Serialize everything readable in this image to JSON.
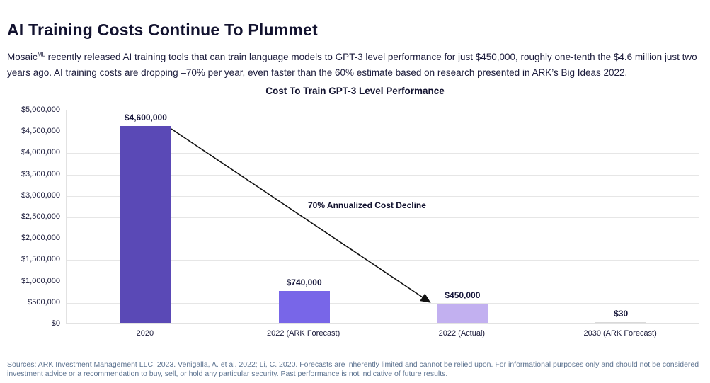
{
  "page": {
    "title": "AI Training Costs Continue To Plummet",
    "intro": {
      "prefix": "Mosaic",
      "superscript": "ML",
      "text": " recently released AI training tools that can train language models to GPT-3 level performance for just $450,000, roughly one-tenth the $4.6 million just two years ago. AI training costs are dropping –70% per year, even faster than the 60% estimate based on research presented in ARK’s Big Ideas 2022."
    },
    "footer": "Sources: ARK Investment Management LLC, 2023. Venigalla, A. et al. 2022; Li, C. 2020. Forecasts are inherently limited and cannot be relied upon. For informational purposes only and should not be considered investment advice or a recommendation to buy, sell, or hold any particular security. Past performance is not indicative of future results."
  },
  "chart_data": {
    "type": "bar",
    "title": "Cost To Train GPT-3 Level Performance",
    "categories": [
      "2020",
      "2022 (ARK Forecast)",
      "2022 (Actual)",
      "2030 (ARK Forecast)"
    ],
    "values": [
      4600000,
      740000,
      450000,
      30
    ],
    "value_labels": [
      "$4,600,000",
      "$740,000",
      "$450,000",
      "$30"
    ],
    "bar_colors": [
      "#5a49b6",
      "#7866e8",
      "#c2b0f0",
      "#d9d9d9"
    ],
    "xlabel": "",
    "ylabel": "",
    "ylim": [
      0,
      5000000
    ],
    "y_tick_interval": 500000,
    "y_tick_labels": [
      "$5,000,000",
      "$4,500,000",
      "$4,000,000",
      "$3,500,000",
      "$3,000,000",
      "$2,500,000",
      "$2,000,000",
      "$1,500,000",
      "$1,000,000",
      "$500,000",
      "$0"
    ],
    "grid": "horizontal",
    "legend": "none",
    "annotation": "70% Annualized Cost Decline"
  },
  "colors": {
    "bar_2020": "#5a49b6",
    "bar_2022_forecast": "#7866e8",
    "bar_2022_actual": "#c2b0f0",
    "bar_2030_forecast": "#d9d9d9",
    "arrow": "#111111",
    "gridline": "#e6e6e6",
    "title_text": "#12122f",
    "footer_text": "#5d7390"
  }
}
